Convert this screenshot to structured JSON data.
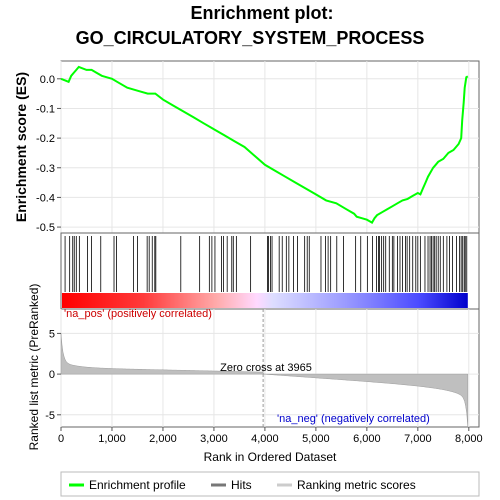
{
  "chart_data": {
    "type": "line",
    "title_line1": "Enrichment plot:",
    "title_line2": "GO_CIRCULATORY_SYSTEM_PROCESS",
    "es_panel": {
      "ylabel": "Enrichment score (ES)",
      "ylim": [
        -0.52,
        0.06
      ],
      "yticks": [
        "0.0",
        "-0.1",
        "-0.2",
        "-0.3",
        "-0.4",
        "-0.5"
      ],
      "ytick_values": [
        0.0,
        -0.1,
        -0.2,
        -0.3,
        -0.4,
        -0.5
      ],
      "line_color": "#00ff00",
      "x": [
        0,
        150,
        200,
        250,
        300,
        350,
        500,
        600,
        700,
        800,
        900,
        1000,
        1100,
        1300,
        1500,
        1700,
        1850,
        2000,
        2200,
        2400,
        2600,
        2800,
        3000,
        3200,
        3400,
        3600,
        3800,
        4000,
        4200,
        4400,
        4600,
        4800,
        5000,
        5200,
        5400,
        5600,
        5750,
        5800,
        5900,
        6000,
        6050,
        6100,
        6150,
        6200,
        6300,
        6400,
        6500,
        6600,
        6700,
        6800,
        6900,
        7000,
        7050,
        7100,
        7150,
        7200,
        7300,
        7350,
        7400,
        7500,
        7600,
        7700,
        7800,
        7850,
        7870,
        7900,
        7920,
        7950,
        7980
      ],
      "y": [
        0.0,
        -0.01,
        0.01,
        0.02,
        0.03,
        0.04,
        0.03,
        0.03,
        0.02,
        0.01,
        0.005,
        0.0,
        -0.01,
        -0.03,
        -0.04,
        -0.05,
        -0.05,
        -0.07,
        -0.09,
        -0.11,
        -0.13,
        -0.15,
        -0.17,
        -0.19,
        -0.21,
        -0.23,
        -0.26,
        -0.29,
        -0.31,
        -0.33,
        -0.35,
        -0.37,
        -0.39,
        -0.41,
        -0.42,
        -0.44,
        -0.455,
        -0.465,
        -0.47,
        -0.475,
        -0.48,
        -0.485,
        -0.47,
        -0.46,
        -0.45,
        -0.44,
        -0.43,
        -0.42,
        -0.41,
        -0.405,
        -0.395,
        -0.385,
        -0.39,
        -0.37,
        -0.35,
        -0.33,
        -0.3,
        -0.29,
        -0.28,
        -0.27,
        -0.25,
        -0.24,
        -0.22,
        -0.2,
        -0.14,
        -0.08,
        -0.03,
        0.005,
        0.008
      ]
    },
    "hits_panel": {
      "hit_positions": [
        80,
        170,
        230,
        260,
        300,
        360,
        520,
        600,
        780,
        1040,
        1090,
        1420,
        1500,
        1690,
        1730,
        1790,
        1840,
        1860,
        2350,
        2720,
        2910,
        2960,
        3020,
        3150,
        3190,
        3260,
        3350,
        3380,
        3440,
        3720,
        4050,
        4070,
        4110,
        4140,
        4280,
        4340,
        4420,
        4470,
        4560,
        4640,
        4780,
        4830,
        4870,
        5100,
        5190,
        5240,
        5290,
        5410,
        5540,
        5780,
        5880,
        6010,
        6110,
        6190,
        6230,
        6250,
        6290,
        6330,
        6370,
        6440,
        6500,
        6530,
        6600,
        6650,
        6700,
        6760,
        6790,
        6840,
        6900,
        6960,
        7000,
        7050,
        7140,
        7200,
        7240,
        7270,
        7300,
        7330,
        7360,
        7400,
        7440,
        7500,
        7570,
        7620,
        7680,
        7760,
        7820,
        7850,
        7880,
        7910,
        7930,
        7960
      ]
    },
    "metric_panel": {
      "ylabel": "Ranked list metric (PreRanked)",
      "ylim": [
        -6.5,
        8
      ],
      "yticks": [
        "5",
        "0",
        "-5"
      ],
      "ytick_values": [
        5,
        0,
        -5
      ],
      "zero_cross_label": "Zero cross at 3965",
      "zero_cross": 3965,
      "pos_label": "'na_pos' (positively correlated)",
      "neg_label": "'na_neg' (negatively correlated)"
    },
    "xlabel": "Rank in Ordered Dataset",
    "xlim": [
      0,
      8200
    ],
    "xticks": [
      "0",
      "1,000",
      "2,000",
      "3,000",
      "4,000",
      "5,000",
      "6,000",
      "7,000",
      "8,000"
    ],
    "xtick_values": [
      0,
      1000,
      2000,
      3000,
      4000,
      5000,
      6000,
      7000,
      8000
    ],
    "n_genes": 7980,
    "legend": [
      {
        "label": "Enrichment profile",
        "color": "#00ff00"
      },
      {
        "label": "Hits",
        "color": "#777777"
      },
      {
        "label": "Ranking metric scores",
        "color": "#cccccc"
      }
    ]
  }
}
